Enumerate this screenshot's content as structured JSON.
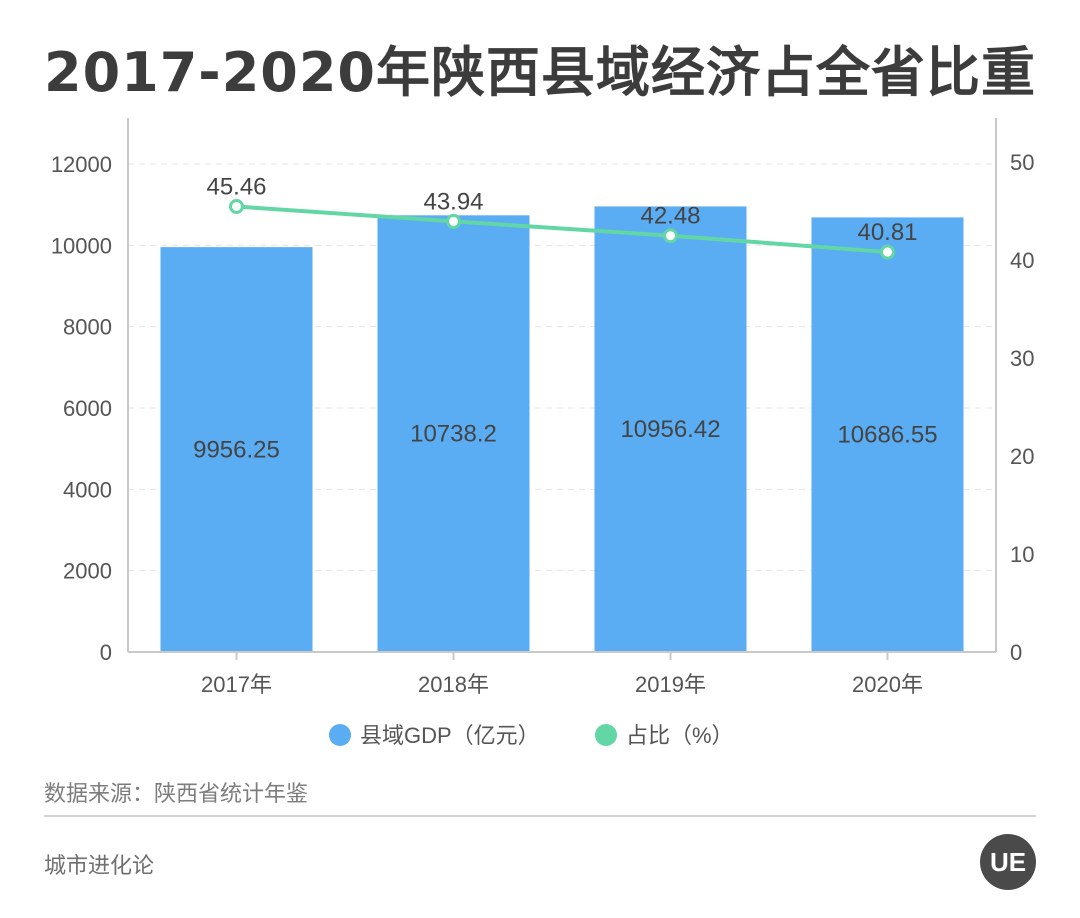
{
  "title": "2017-2020年陕西县域经济占全省比重",
  "source": "数据来源：陕西省统计年鉴",
  "brand": "城市进化论",
  "logo_text": "UE",
  "colors": {
    "bar": "#5aadf3",
    "line": "#62d6a4",
    "axis": "#c9c9c9",
    "grid": "#e5e5e5",
    "tick_text": "#555555",
    "label_text": "#444444",
    "title": "#3c3c3c"
  },
  "chart_data": {
    "type": "bar+line",
    "title": "2017-2020年陕西县域经济占全省比重",
    "categories": [
      "2017年",
      "2018年",
      "2019年",
      "2020年"
    ],
    "series": [
      {
        "name": "县域GDP（亿元）",
        "type": "bar",
        "axis": "left",
        "values": [
          9956.25,
          10738.2,
          10956.42,
          10686.55
        ],
        "labels": [
          "9956.25",
          "10738.2",
          "10956.42",
          "10686.55"
        ]
      },
      {
        "name": "占比（%）",
        "type": "line",
        "axis": "right",
        "values": [
          45.46,
          43.94,
          42.48,
          40.81
        ],
        "labels": [
          "45.46",
          "43.94",
          "42.48",
          "40.81"
        ]
      }
    ],
    "y_left": {
      "min": 0,
      "max": 12000,
      "ticks": [
        "0",
        "2000",
        "4000",
        "6000",
        "8000",
        "10000",
        "12000"
      ]
    },
    "y_right": {
      "min": 0,
      "max": 50,
      "ticks": [
        "0",
        "10",
        "20",
        "30",
        "40",
        "50"
      ]
    },
    "grid": true,
    "legend_position": "bottom"
  }
}
